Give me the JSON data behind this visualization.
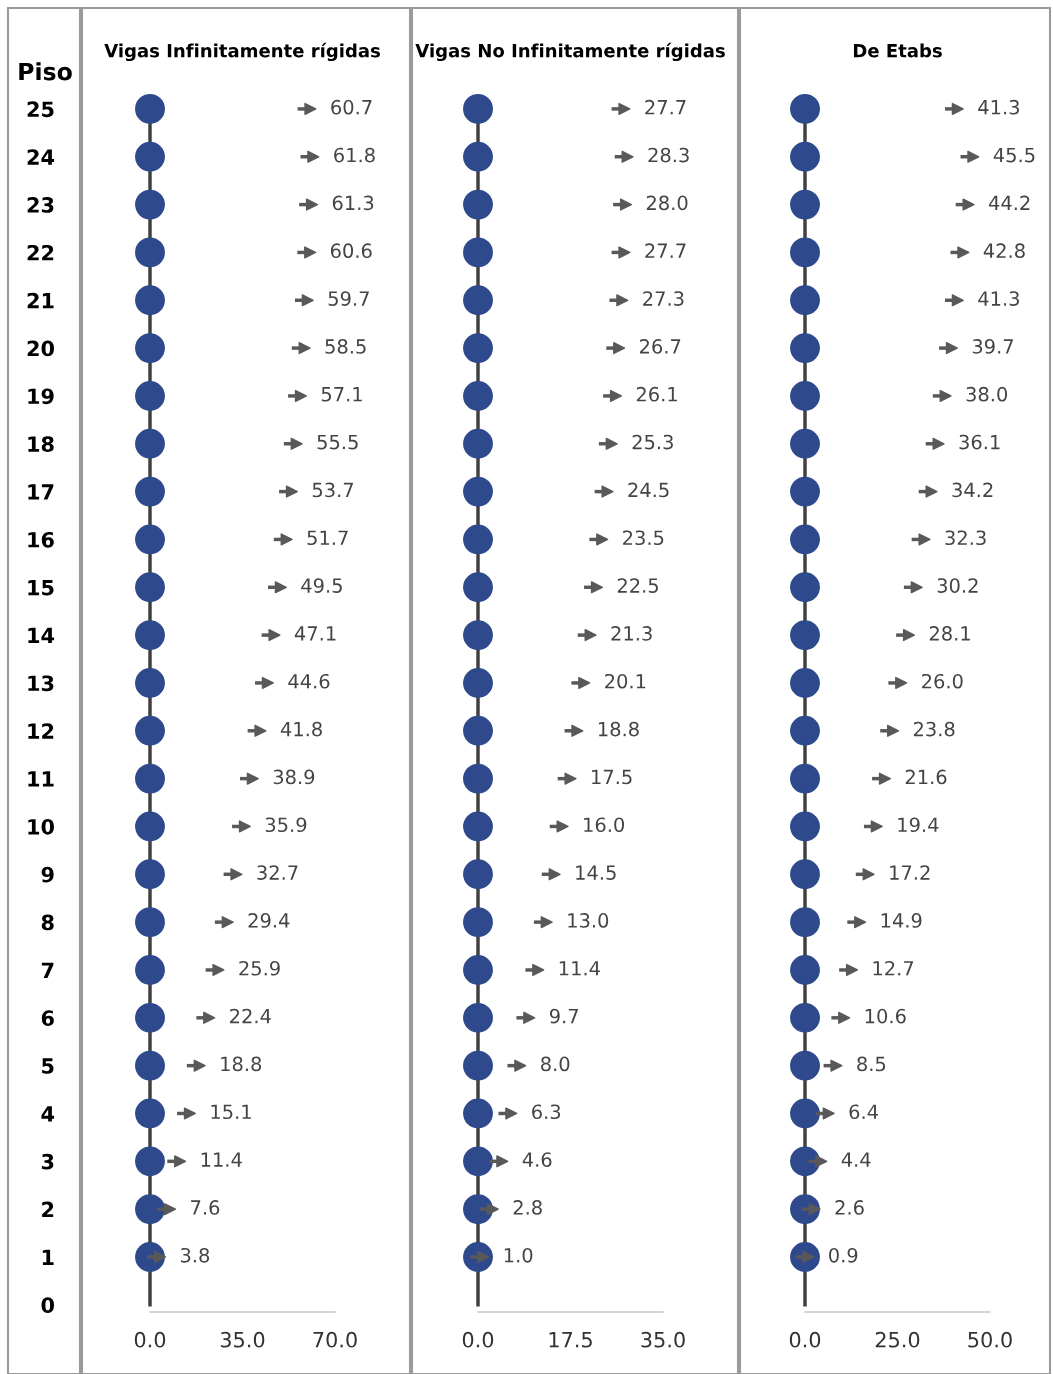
{
  "chart_data": [
    {
      "type": "scatter",
      "orientation": "horizontal",
      "title": "Vigas Infinitamente rígidas",
      "ylabel": "Piso",
      "categories": [
        "25",
        "24",
        "23",
        "22",
        "21",
        "20",
        "19",
        "18",
        "17",
        "16",
        "15",
        "14",
        "13",
        "12",
        "11",
        "10",
        "9",
        "8",
        "7",
        "6",
        "5",
        "4",
        "3",
        "2",
        "1",
        "0"
      ],
      "xlim": [
        0,
        70
      ],
      "xticks": [
        {
          "value": 0,
          "label": "0.0"
        },
        {
          "value": 35,
          "label": "35.0"
        },
        {
          "value": 70,
          "label": "70.0"
        }
      ],
      "grid": false,
      "legend": false,
      "series": [
        {
          "type": "line",
          "color": "#404040",
          "marker": "none",
          "values": [
            0,
            0,
            0,
            0,
            0,
            0,
            0,
            0,
            0,
            0,
            0,
            0,
            0,
            0,
            0,
            0,
            0,
            0,
            0,
            0,
            0,
            0,
            0,
            0,
            0,
            0
          ]
        },
        {
          "color": "#2e4a8c",
          "marker": "circle",
          "values": [
            0,
            0,
            0,
            0,
            0,
            0,
            0,
            0,
            0,
            0,
            0,
            0,
            0,
            0,
            0,
            0,
            0,
            0,
            0,
            0,
            0,
            0,
            0,
            0,
            0,
            null
          ]
        },
        {
          "color": "#595959",
          "marker": "triangle",
          "values": [
            60.7,
            61.8,
            61.3,
            60.6,
            59.7,
            58.5,
            57.1,
            55.5,
            53.7,
            51.7,
            49.5,
            47.1,
            44.6,
            41.8,
            38.9,
            35.9,
            32.7,
            29.4,
            25.9,
            22.4,
            18.8,
            15.1,
            11.4,
            7.6,
            3.8,
            null
          ],
          "value_labels": [
            "60.7",
            "61.8",
            "61.3",
            "60.6",
            "59.7",
            "58.5",
            "57.1",
            "55.5",
            "53.7",
            "51.7",
            "49.5",
            "47.1",
            "44.6",
            "41.8",
            "38.9",
            "35.9",
            "32.7",
            "29.4",
            "25.9",
            "22.4",
            "18.8",
            "15.1",
            "11.4",
            "7.6",
            "3.8",
            null
          ]
        }
      ]
    },
    {
      "type": "scatter",
      "orientation": "horizontal",
      "title": "Vigas No Infinitamente rígidas",
      "categories": [
        "25",
        "24",
        "23",
        "22",
        "21",
        "20",
        "19",
        "18",
        "17",
        "16",
        "15",
        "14",
        "13",
        "12",
        "11",
        "10",
        "9",
        "8",
        "7",
        "6",
        "5",
        "4",
        "3",
        "2",
        "1",
        "0"
      ],
      "xlim": [
        0,
        35
      ],
      "xticks": [
        {
          "value": 0,
          "label": "0.0"
        },
        {
          "value": 17.5,
          "label": "17.5"
        },
        {
          "value": 35,
          "label": "35.0"
        }
      ],
      "tick_labels": "x",
      "grid": false,
      "legend": false,
      "series": [
        {
          "type": "line",
          "color": "#404040",
          "marker": "none",
          "values": [
            0,
            0,
            0,
            0,
            0,
            0,
            0,
            0,
            0,
            0,
            0,
            0,
            0,
            0,
            0,
            0,
            0,
            0,
            0,
            0,
            0,
            0,
            0,
            0,
            0,
            0
          ]
        },
        {
          "color": "#2e4a8c",
          "marker": "circle",
          "values": [
            0,
            0,
            0,
            0,
            0,
            0,
            0,
            0,
            0,
            0,
            0,
            0,
            0,
            0,
            0,
            0,
            0,
            0,
            0,
            0,
            0,
            0,
            0,
            0,
            0,
            null
          ]
        },
        {
          "color": "#595959",
          "marker": "triangle",
          "values": [
            27.7,
            28.3,
            28.0,
            27.7,
            27.3,
            26.7,
            26.1,
            25.3,
            24.5,
            23.5,
            22.5,
            21.3,
            20.1,
            18.8,
            17.5,
            16.0,
            14.5,
            13.0,
            11.4,
            9.7,
            8.0,
            6.3,
            4.6,
            2.8,
            1.0,
            null
          ],
          "value_labels": [
            "27.7",
            "28.3",
            "28.0",
            "27.7",
            "27.3",
            "26.7",
            "26.1",
            "25.3",
            "24.5",
            "23.5",
            "22.5",
            "21.3",
            "20.1",
            "18.8",
            "17.5",
            "16.0",
            "14.5",
            "13.0",
            "11.4",
            "9.7",
            "8.0",
            "6.3",
            "4.6",
            "2.8",
            "1.0",
            null
          ]
        }
      ]
    },
    {
      "type": "scatter",
      "orientation": "horizontal",
      "title": "De Etabs",
      "categories": [
        "25",
        "24",
        "23",
        "22",
        "21",
        "20",
        "19",
        "18",
        "17",
        "16",
        "15",
        "14",
        "13",
        "12",
        "11",
        "10",
        "9",
        "8",
        "7",
        "6",
        "5",
        "4",
        "3",
        "2",
        "1",
        "0"
      ],
      "xlim": [
        0,
        50
      ],
      "xticks": [
        {
          "value": 0,
          "label": "0.0"
        },
        {
          "value": 25,
          "label": "25.0"
        },
        {
          "value": 50,
          "label": "50.0"
        }
      ],
      "tick_labels": "x",
      "grid": false,
      "legend": false,
      "series": [
        {
          "type": "line",
          "color": "#404040",
          "marker": "none",
          "values": [
            0,
            0,
            0,
            0,
            0,
            0,
            0,
            0,
            0,
            0,
            0,
            0,
            0,
            0,
            0,
            0,
            0,
            0,
            0,
            0,
            0,
            0,
            0,
            0,
            0,
            0
          ]
        },
        {
          "color": "#2e4a8c",
          "marker": "circle",
          "values": [
            0,
            0,
            0,
            0,
            0,
            0,
            0,
            0,
            0,
            0,
            0,
            0,
            0,
            0,
            0,
            0,
            0,
            0,
            0,
            0,
            0,
            0,
            0,
            0,
            0,
            null
          ]
        },
        {
          "color": "#595959",
          "marker": "triangle",
          "values": [
            41.3,
            45.5,
            44.2,
            42.8,
            41.3,
            39.7,
            38.0,
            36.1,
            34.2,
            32.3,
            30.2,
            28.1,
            26.0,
            23.8,
            21.6,
            19.4,
            17.2,
            14.9,
            12.7,
            10.6,
            8.5,
            6.4,
            4.4,
            2.6,
            0.9,
            null
          ],
          "value_labels": [
            "41.3",
            "45.5",
            "44.2",
            "42.8",
            "41.3",
            "39.7",
            "38.0",
            "36.1",
            "34.2",
            "32.3",
            "30.2",
            "28.1",
            "26.0",
            "23.8",
            "21.6",
            "19.4",
            "17.2",
            "14.9",
            "12.7",
            "10.6",
            "8.5",
            "6.4",
            "4.4",
            "2.6",
            "0.9",
            null
          ]
        }
      ]
    }
  ]
}
